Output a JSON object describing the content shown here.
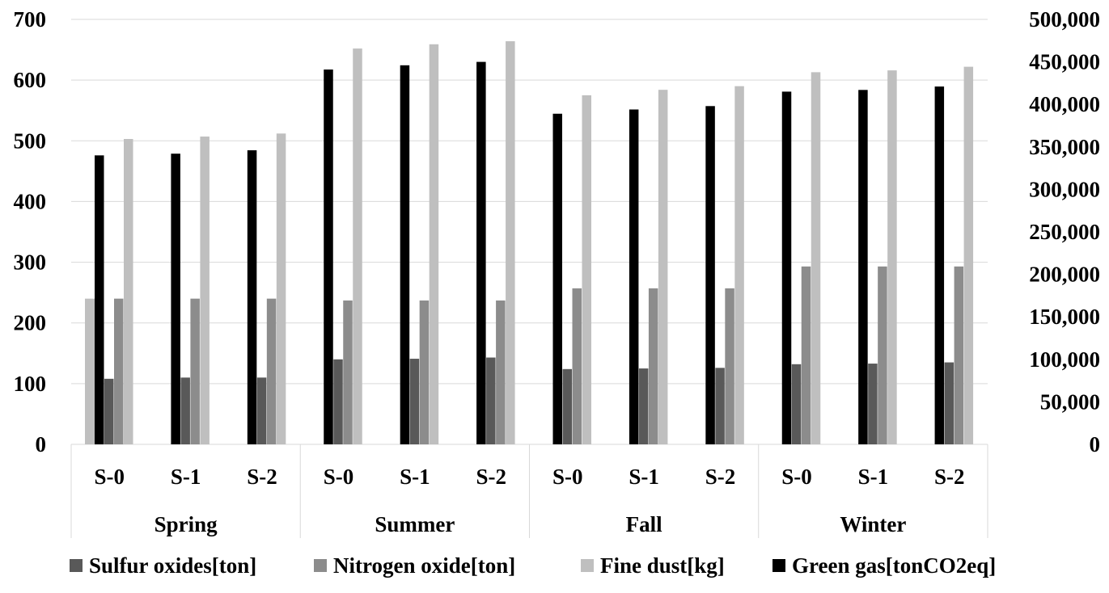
{
  "chart_data": {
    "type": "bar",
    "groups": [
      "Spring",
      "Summer",
      "Fall",
      "Winter"
    ],
    "scenarios": [
      "S-0",
      "S-1",
      "S-2"
    ],
    "left_axis": {
      "ticks": [
        "0",
        "100",
        "200",
        "300",
        "400",
        "500",
        "600",
        "700"
      ],
      "ylim": [
        0,
        700
      ]
    },
    "right_axis": {
      "ticks": [
        "0",
        "50,000",
        "100,000",
        "150,000",
        "200,000",
        "250,000",
        "300,000",
        "350,000",
        "400,000",
        "450,000",
        "500,000"
      ],
      "ylim": [
        0,
        500000
      ]
    },
    "gridlines": true,
    "legend_position": "bottom",
    "series": [
      {
        "name": "Sulfur oxides[ton]",
        "axis": "left",
        "color": "#595959",
        "values": [
          108,
          110,
          110,
          140,
          141,
          143,
          124,
          125,
          126,
          132,
          133,
          135
        ]
      },
      {
        "name": "Nitrogen oxide[ton]",
        "axis": "left",
        "color": "#8c8c8c",
        "values": [
          240,
          240,
          240,
          237,
          237,
          237,
          257,
          257,
          257,
          293,
          293,
          293
        ]
      },
      {
        "name": "Fine dust[kg]",
        "axis": "left",
        "color": "#bfbfbf",
        "values": [
          503,
          507,
          512,
          652,
          659,
          664,
          575,
          584,
          590,
          613,
          616,
          622
        ],
        "extra_bar": {
          "group_index": 0,
          "value": 240
        }
      },
      {
        "name": "Green gas[tonCO2eq]",
        "axis": "right",
        "color": "#000000",
        "values": [
          340000,
          342000,
          346000,
          441000,
          446000,
          450000,
          389000,
          394000,
          398000,
          415000,
          417000,
          421000
        ]
      }
    ]
  }
}
